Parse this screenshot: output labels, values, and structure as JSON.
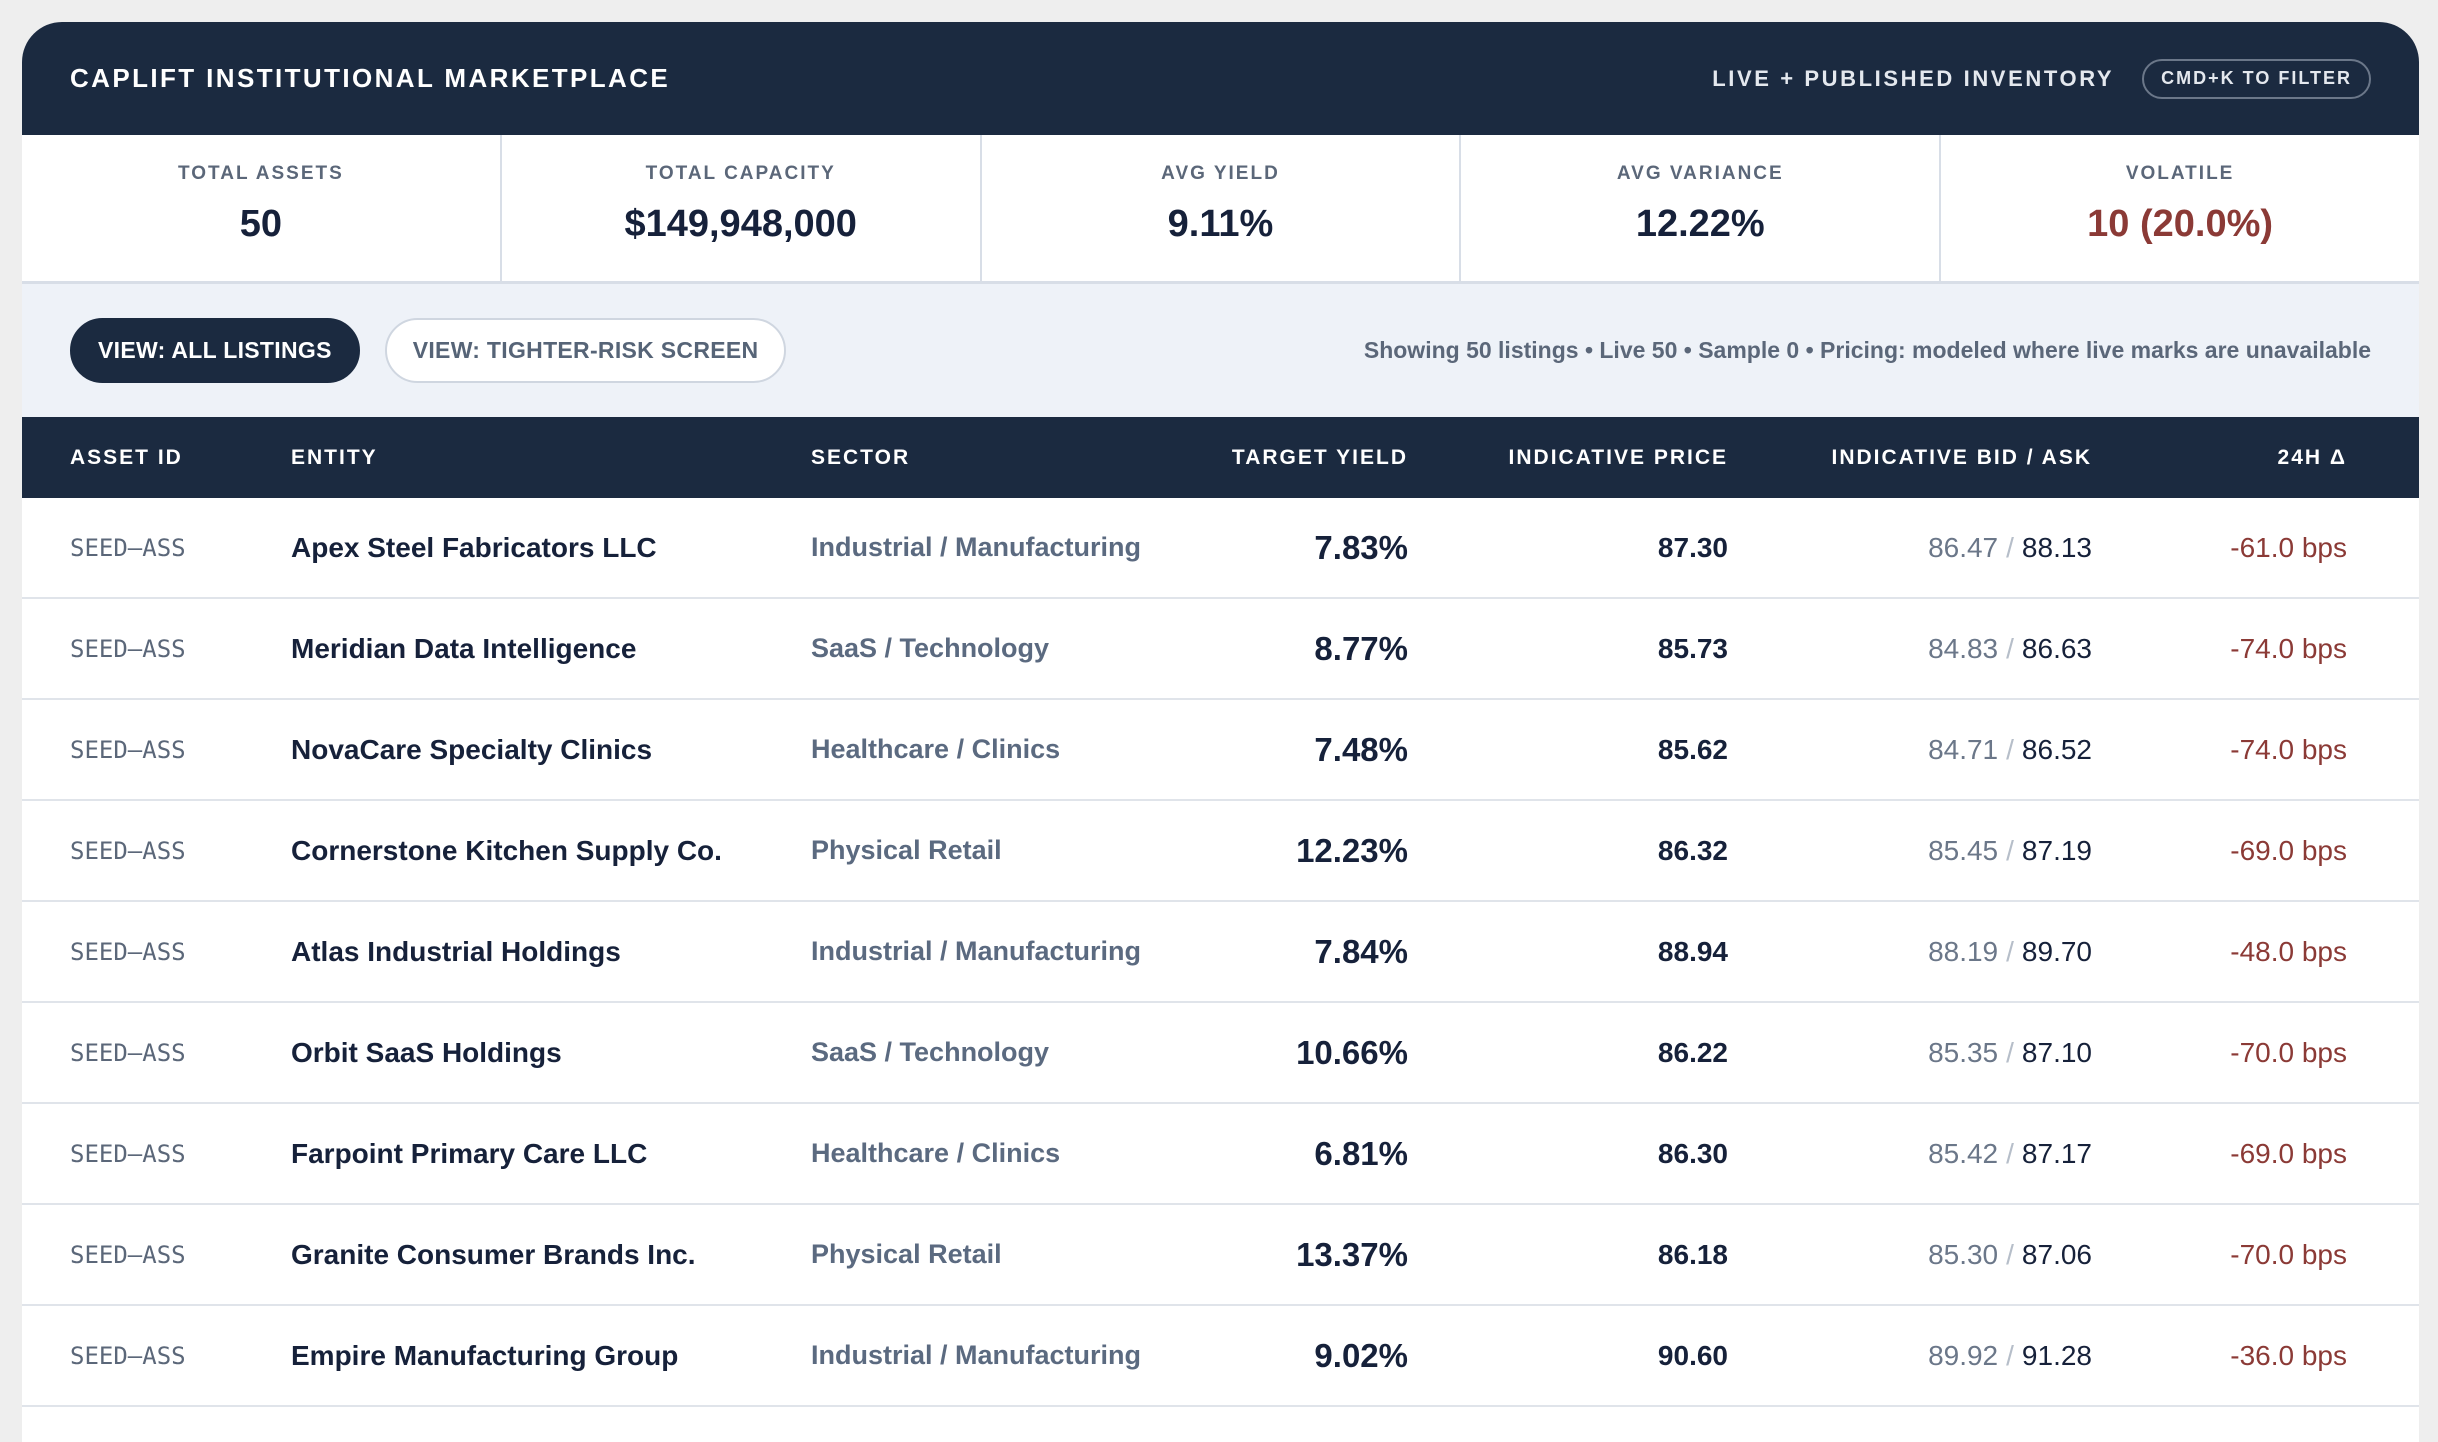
{
  "header": {
    "title": "CAPLIFT INSTITUTIONAL MARKETPLACE",
    "inventory_label": "LIVE + PUBLISHED INVENTORY",
    "filter_hint": "CMD+K TO FILTER"
  },
  "stats": [
    {
      "label": "TOTAL ASSETS",
      "value": "50"
    },
    {
      "label": "TOTAL CAPACITY",
      "value": "$149,948,000"
    },
    {
      "label": "AVG YIELD",
      "value": "9.11%"
    },
    {
      "label": "AVG VARIANCE",
      "value": "12.22%"
    },
    {
      "label": "VOLATILE",
      "value": "10 (20.0%)"
    }
  ],
  "controls": {
    "view_all": "VIEW: ALL LISTINGS",
    "view_tighter": "VIEW: TIGHTER-RISK SCREEN",
    "showing": "Showing 50 listings • Live 50 • Sample 0 • Pricing: modeled where live marks are unavailable"
  },
  "colors": {
    "navy": "#1b2a40",
    "negative": "#8b3a36"
  },
  "table": {
    "columns": [
      "ASSET ID",
      "ENTITY",
      "SECTOR",
      "TARGET YIELD",
      "INDICATIVE PRICE",
      "INDICATIVE BID / ASK",
      "24H Δ"
    ],
    "rows": [
      {
        "id": "SEED–ASS",
        "entity": "Apex Steel Fabricators LLC",
        "sector": "Industrial / Manufacturing",
        "yield": "7.83%",
        "price": "87.30",
        "bid": "86.47",
        "ask": "88.13",
        "delta": "-61.0 bps"
      },
      {
        "id": "SEED–ASS",
        "entity": "Meridian Data Intelligence",
        "sector": "SaaS / Technology",
        "yield": "8.77%",
        "price": "85.73",
        "bid": "84.83",
        "ask": "86.63",
        "delta": "-74.0 bps"
      },
      {
        "id": "SEED–ASS",
        "entity": "NovaCare Specialty Clinics",
        "sector": "Healthcare / Clinics",
        "yield": "7.48%",
        "price": "85.62",
        "bid": "84.71",
        "ask": "86.52",
        "delta": "-74.0 bps"
      },
      {
        "id": "SEED–ASS",
        "entity": "Cornerstone Kitchen Supply Co.",
        "sector": "Physical Retail",
        "yield": "12.23%",
        "price": "86.32",
        "bid": "85.45",
        "ask": "87.19",
        "delta": "-69.0 bps"
      },
      {
        "id": "SEED–ASS",
        "entity": "Atlas Industrial Holdings",
        "sector": "Industrial / Manufacturing",
        "yield": "7.84%",
        "price": "88.94",
        "bid": "88.19",
        "ask": "89.70",
        "delta": "-48.0 bps"
      },
      {
        "id": "SEED–ASS",
        "entity": "Orbit SaaS Holdings",
        "sector": "SaaS / Technology",
        "yield": "10.66%",
        "price": "86.22",
        "bid": "85.35",
        "ask": "87.10",
        "delta": "-70.0 bps"
      },
      {
        "id": "SEED–ASS",
        "entity": "Farpoint Primary Care LLC",
        "sector": "Healthcare / Clinics",
        "yield": "6.81%",
        "price": "86.30",
        "bid": "85.42",
        "ask": "87.17",
        "delta": "-69.0 bps"
      },
      {
        "id": "SEED–ASS",
        "entity": "Granite Consumer Brands Inc.",
        "sector": "Physical Retail",
        "yield": "13.37%",
        "price": "86.18",
        "bid": "85.30",
        "ask": "87.06",
        "delta": "-70.0 bps"
      },
      {
        "id": "SEED–ASS",
        "entity": "Empire Manufacturing Group",
        "sector": "Industrial / Manufacturing",
        "yield": "9.02%",
        "price": "90.60",
        "bid": "89.92",
        "ask": "91.28",
        "delta": "-36.0 bps"
      }
    ]
  }
}
